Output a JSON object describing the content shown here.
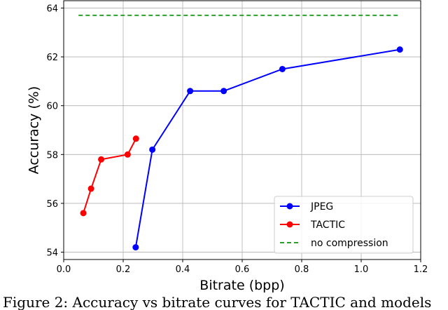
{
  "chart_data": {
    "type": "line",
    "xlabel": "Bitrate (bpp)",
    "ylabel": "Accuracy (%)",
    "xlim": [
      0.0,
      1.2
    ],
    "ylim": [
      53.7,
      64.3
    ],
    "xticks": [
      "0.0",
      "0.2",
      "0.4",
      "0.6",
      "0.8",
      "1.0",
      "1.2"
    ],
    "yticks": [
      "54",
      "56",
      "58",
      "60",
      "62",
      "64"
    ],
    "grid": true,
    "legend_position": "lower-right",
    "series": [
      {
        "name": "JPEG",
        "color": "#0000ff",
        "style": "line-marker",
        "x": [
          0.242,
          0.298,
          0.425,
          0.538,
          0.735,
          1.13
        ],
        "y": [
          54.2,
          58.2,
          60.6,
          60.6,
          61.5,
          62.3
        ]
      },
      {
        "name": "TACTIC",
        "color": "#ff0000",
        "style": "line-marker",
        "x": [
          0.066,
          0.092,
          0.126,
          0.215,
          0.243
        ],
        "y": [
          55.6,
          56.6,
          57.8,
          58.0,
          58.65
        ]
      },
      {
        "name": "no compression",
        "color": "#2ca02c",
        "style": "dashed",
        "x": [
          0.05,
          1.13
        ],
        "y": [
          63.7,
          63.7
        ]
      }
    ]
  },
  "caption": "Figure 2:  Accuracy vs bitrate curves for TACTIC and models"
}
